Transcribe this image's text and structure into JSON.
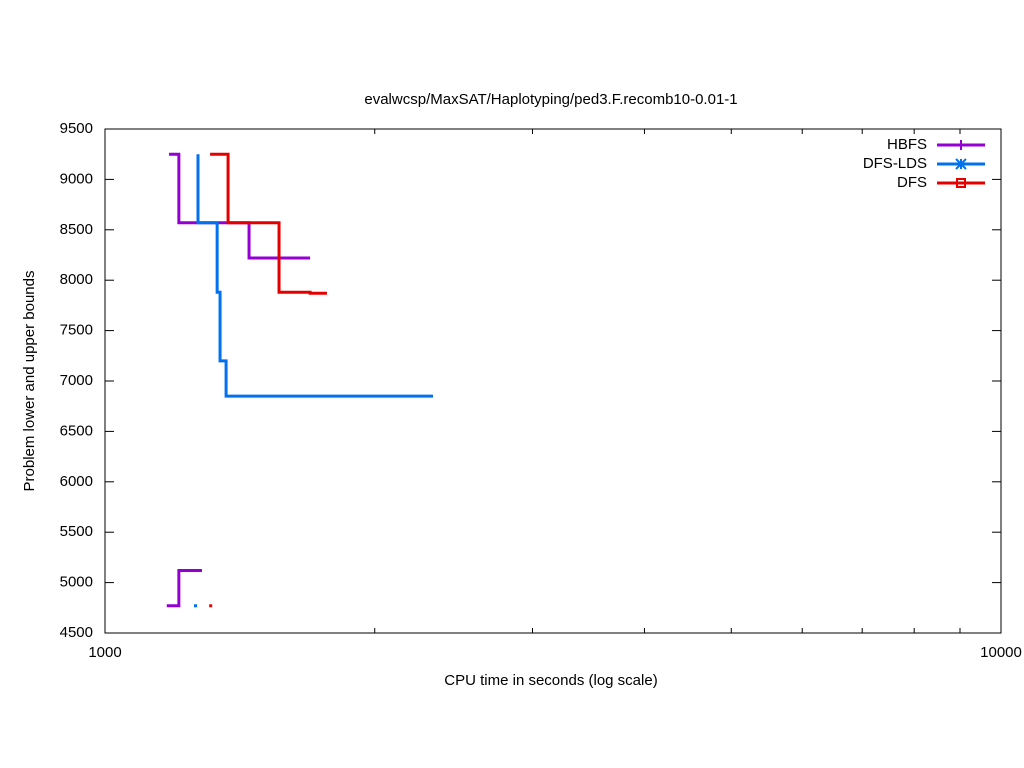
{
  "chart_data": {
    "type": "step",
    "title": "evalwcsp/MaxSAT/Haplotyping/ped3.F.recomb10-0.01-1",
    "x_label": "CPU time in seconds (log scale)",
    "y_label": "Problem lower and upper bounds",
    "x_log": true,
    "xlim": [
      1000,
      10000
    ],
    "xticks": [
      1000,
      10000
    ],
    "xminorticks": [
      2000,
      3000,
      4000,
      5000,
      6000,
      7000,
      8000,
      9000
    ],
    "ylim": [
      4500,
      9500
    ],
    "yticks": [
      4500,
      5000,
      5500,
      6000,
      6500,
      7000,
      7500,
      8000,
      8500,
      9000,
      9500
    ],
    "grid": false,
    "legend": "top-right",
    "series": [
      {
        "name": "HBFS",
        "color": "#9400d3",
        "marker": "plus",
        "x": [
          1179,
          1209,
          1448,
          1694
        ],
        "values": [
          9250,
          8570,
          8220,
          8220
        ],
        "lower_x": [
          1172,
          1209,
          1283
        ],
        "lower_values": [
          4770,
          5120,
          5120
        ]
      },
      {
        "name": "DFS-LDS",
        "color": "#0072f0",
        "marker": "star",
        "x": [
          1270,
          1270,
          1334,
          1344,
          1365,
          2323
        ],
        "values": [
          9250,
          8570,
          7880,
          7200,
          6850,
          6850
        ],
        "lower_x": [
          1257
        ],
        "lower_values": [
          4770
        ]
      },
      {
        "name": "DFS",
        "color": "#e50000",
        "marker": "square",
        "x": [
          1310,
          1372,
          1564,
          1694,
          1769
        ],
        "values": [
          9250,
          8570,
          7880,
          7870,
          7870
        ],
        "lower_x": [
          1307
        ],
        "lower_values": [
          4770
        ]
      }
    ]
  }
}
